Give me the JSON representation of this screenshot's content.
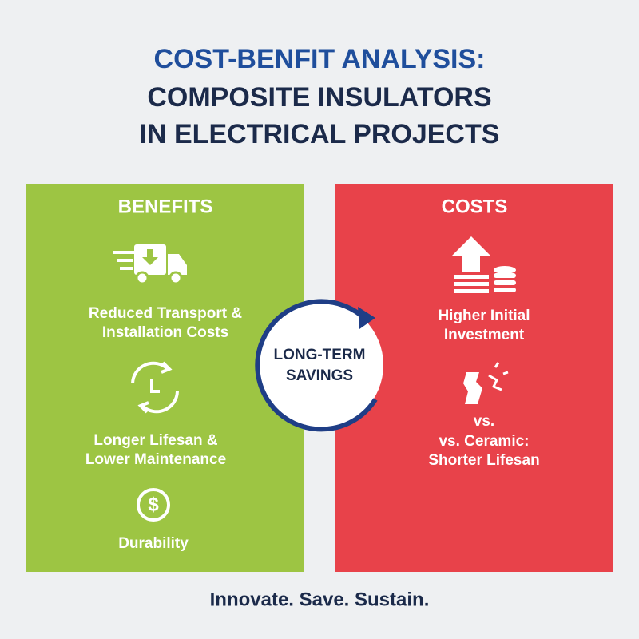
{
  "header": {
    "title_lines": [
      "COST-BENFIT ANALYSIS:",
      "COMPOSITE INSULATORS",
      "IN ELECTRICAL PROJECTS"
    ]
  },
  "benefits": {
    "heading": "BENEFITS",
    "items": [
      {
        "lines": [
          "Reduced Transport &",
          "Installation Costs"
        ]
      },
      {
        "lines": [
          "Longer Lifesan &",
          "Lower Maintenance"
        ]
      },
      {
        "lines": [
          "Durability"
        ]
      }
    ]
  },
  "costs": {
    "heading": "COSTS",
    "items": [
      {
        "lines": [
          "Higher Initial",
          "Investment"
        ]
      },
      {
        "lines": [
          "vs.",
          "vs. Ceramic:",
          "Shorter Lifesan"
        ]
      }
    ]
  },
  "center": {
    "lines": [
      "LONG-TERM",
      "SAVINGS"
    ]
  },
  "footer": {
    "tagline": "Innovate. Save. Sustain."
  }
}
